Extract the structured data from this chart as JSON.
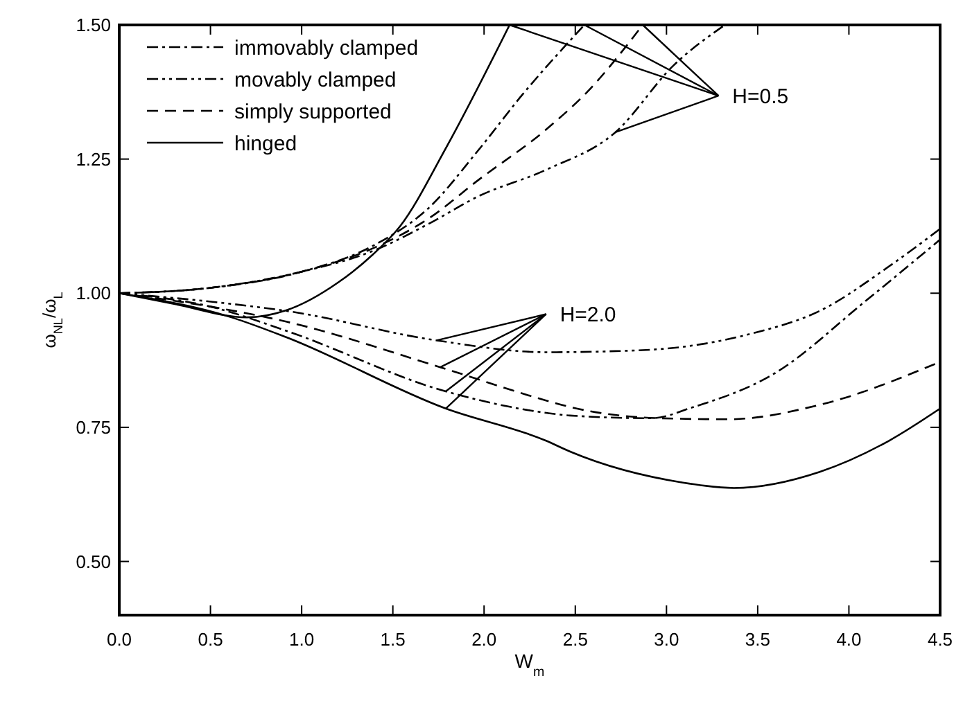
{
  "chart_data": {
    "type": "line",
    "xlabel": "W$_{m}$",
    "ylabel": "ω$_{NL}$/ω$_{L}$",
    "xlim": [
      0,
      4.5
    ],
    "ylim": [
      0.4,
      1.5
    ],
    "xticks": [
      {
        "value": 0,
        "label": "0.0"
      },
      {
        "value": 0.5,
        "label": "0.5"
      },
      {
        "value": 1,
        "label": "1.0"
      },
      {
        "value": 1.5,
        "label": "1.5"
      },
      {
        "value": 2,
        "label": "2.0"
      },
      {
        "value": 2.5,
        "label": "2.5"
      },
      {
        "value": 3,
        "label": "3.0"
      },
      {
        "value": 3.5,
        "label": "3.5"
      },
      {
        "value": 4,
        "label": "4.0"
      },
      {
        "value": 4.5,
        "label": "4.5"
      }
    ],
    "yticks": [
      {
        "value": 0.5,
        "label": "0.50"
      },
      {
        "value": 0.75,
        "label": "0.75"
      },
      {
        "value": 1,
        "label": "1.00"
      },
      {
        "value": 1.25,
        "label": "1.25"
      },
      {
        "value": 1.5,
        "label": "1.50"
      }
    ],
    "grid": false,
    "legend": "top left",
    "marker": "none",
    "series": [
      {
        "name": "immovably clamped",
        "color": "#000000",
        "line_style": "dashdot",
        "x": [
          0,
          0.5,
          1.0,
          1.4,
          1.7,
          1.965,
          2.21,
          2.55
        ],
        "values": [
          1,
          1.01,
          1.04,
          1.09,
          1.16,
          1.265,
          1.37,
          1.5
        ]
      },
      {
        "name": "movably clamped",
        "color": "#000000",
        "line_style": "dashdotdot",
        "x": [
          0,
          0.5,
          1.0,
          1.4,
          1.7,
          1.965,
          2.34,
          2.72,
          3.04,
          3.32
        ],
        "values": [
          1,
          1.01,
          1.04,
          1.08,
          1.13,
          1.18,
          1.23,
          1.3,
          1.425,
          1.5
        ]
      },
      {
        "name": "simply supported",
        "color": "#000000",
        "line_style": "dashed",
        "x": [
          0,
          0.5,
          1.0,
          1.4,
          1.7,
          1.965,
          2.34,
          2.565,
          2.87
        ],
        "values": [
          1,
          1.01,
          1.04,
          1.085,
          1.14,
          1.21,
          1.305,
          1.375,
          1.5
        ]
      },
      {
        "name": "hinged",
        "color": "#000000",
        "line_style": "solid",
        "x": [
          0,
          0.3,
          0.7,
          0.915,
          1.2,
          1.39,
          1.54,
          1.79,
          2.14
        ],
        "values": [
          1,
          0.98,
          0.955,
          0.968,
          1.02,
          1.072,
          1.125,
          1.27,
          1.5
        ]
      },
      {
        "color": "#000000",
        "line_style": "dashdot",
        "x": [
          0,
          0.5,
          0.915,
          1.79,
          2.34,
          2.47,
          2.92,
          3.14,
          3.59,
          4.09,
          4.5
        ],
        "values": [
          1,
          0.975,
          0.93,
          0.817,
          0.777,
          0.772,
          0.767,
          0.787,
          0.85,
          0.985,
          1.1
        ]
      },
      {
        "color": "#000000",
        "line_style": "dashdotdot",
        "x": [
          0,
          0.615,
          0.915,
          1.74,
          2.34,
          2.72,
          3.09,
          3.47,
          3.84,
          4.22,
          4.5
        ],
        "values": [
          1,
          0.98,
          0.967,
          0.912,
          0.89,
          0.892,
          0.9,
          0.925,
          0.967,
          1.05,
          1.12
        ]
      },
      {
        "color": "#000000",
        "line_style": "dashed",
        "x": [
          0,
          0.5,
          0.915,
          1.76,
          2.34,
          2.47,
          2.96,
          3.34,
          3.84,
          4.5
        ],
        "values": [
          1,
          0.975,
          0.947,
          0.862,
          0.8,
          0.788,
          0.767,
          0.765,
          0.792,
          0.872
        ]
      },
      {
        "color": "#000000",
        "line_style": "solid",
        "x": [
          0,
          0.615,
          0.915,
          1.79,
          2.34,
          2.47,
          3.09,
          3.37,
          3.84,
          4.22,
          4.5
        ],
        "values": [
          1,
          0.955,
          0.918,
          0.785,
          0.725,
          0.705,
          0.647,
          0.637,
          0.667,
          0.725,
          0.785
        ]
      }
    ],
    "annotations": [
      {
        "text": "H=0.5",
        "x": 2.87,
        "y": 1.5
      },
      {
        "text": "H=2.0",
        "x": 1.79,
        "y": 0.785
      }
    ]
  }
}
